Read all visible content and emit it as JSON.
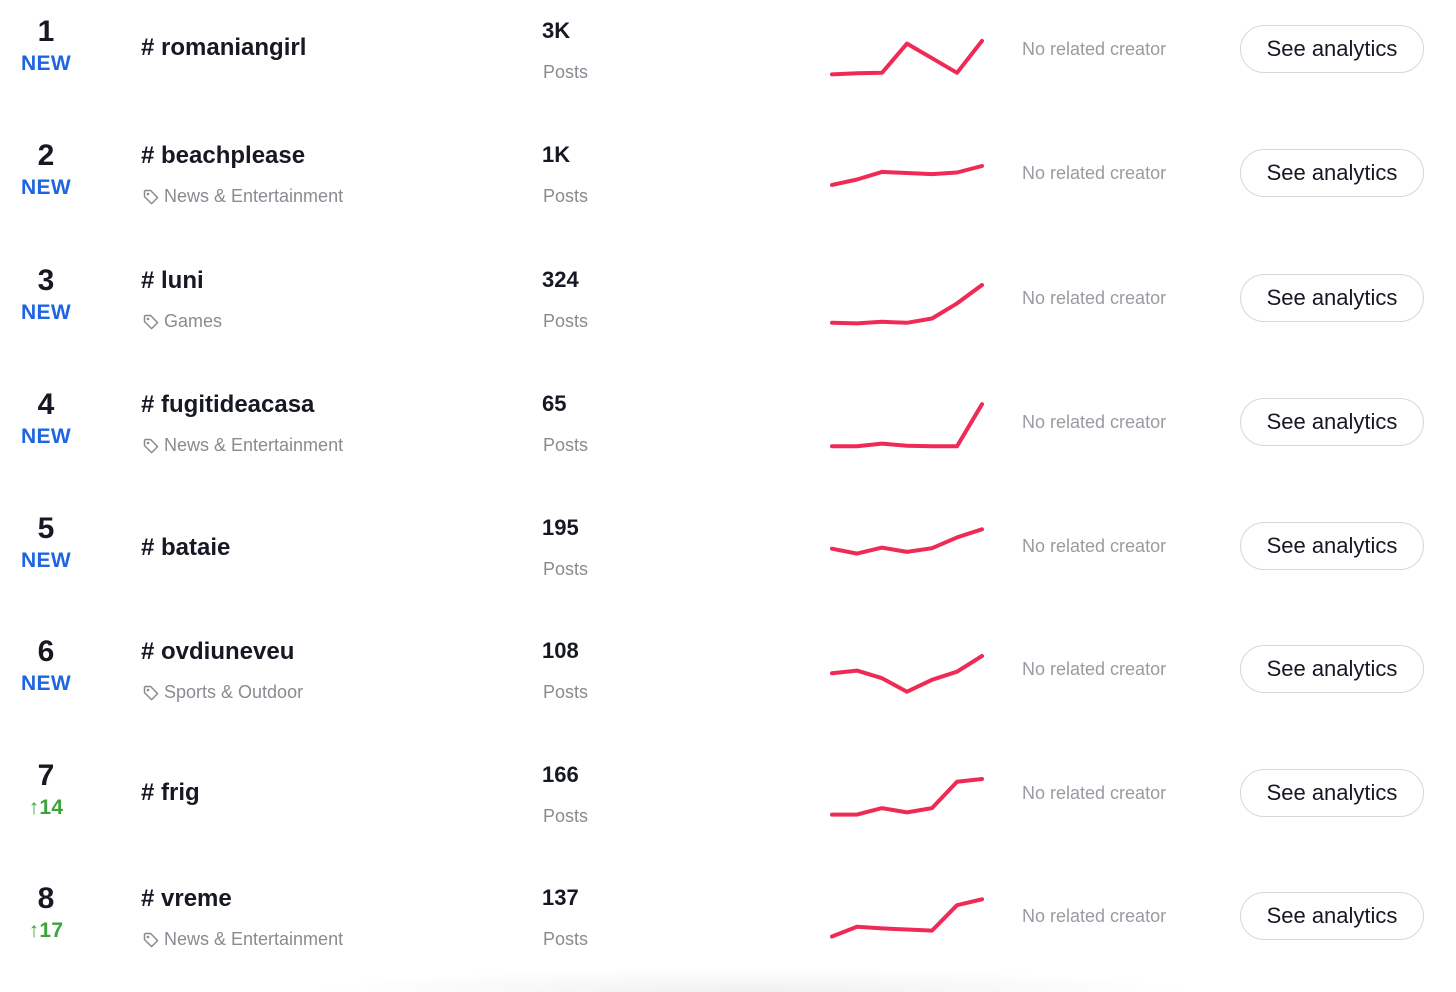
{
  "posts_label": "Posts",
  "creator_text": "No related creator",
  "button_label": "See analytics",
  "colors": {
    "trend_line": "#ee2a55",
    "badge_new": "#1f65e0",
    "badge_up": "#3ea33a"
  },
  "rows": [
    {
      "rank": "1",
      "badge": "NEW",
      "badge_type": "new",
      "hashtag": "# romaniangirl",
      "category": "",
      "posts": "3K",
      "trend": [
        0.03,
        0.05,
        0.06,
        0.6,
        0.33,
        0.06,
        0.65
      ]
    },
    {
      "rank": "2",
      "badge": "NEW",
      "badge_type": "new",
      "hashtag": "# beachplease",
      "category": "News & Entertainment",
      "posts": "1K",
      "trend": [
        0.28,
        0.38,
        0.52,
        0.5,
        0.48,
        0.51,
        0.63
      ]
    },
    {
      "rank": "3",
      "badge": "NEW",
      "badge_type": "new",
      "hashtag": "# luni",
      "category": "Games",
      "posts": "324",
      "trend": [
        0.04,
        0.03,
        0.06,
        0.04,
        0.12,
        0.4,
        0.74
      ]
    },
    {
      "rank": "4",
      "badge": "NEW",
      "badge_type": "new",
      "hashtag": "# fugitideacasa",
      "category": "News & Entertainment",
      "posts": "65",
      "trend": [
        0.05,
        0.05,
        0.1,
        0.06,
        0.05,
        0.05,
        0.83
      ]
    },
    {
      "rank": "5",
      "badge": "NEW",
      "badge_type": "new",
      "hashtag": "# bataie",
      "category": "",
      "posts": "195",
      "trend": [
        0.45,
        0.36,
        0.47,
        0.39,
        0.46,
        0.66,
        0.81
      ]
    },
    {
      "rank": "6",
      "badge": "NEW",
      "badge_type": "new",
      "hashtag": "# ovdiuneveu",
      "category": "Sports & Outdoor",
      "posts": "108",
      "trend": [
        0.42,
        0.47,
        0.33,
        0.08,
        0.3,
        0.45,
        0.74
      ]
    },
    {
      "rank": "7",
      "badge": "↑14",
      "badge_type": "up",
      "hashtag": "# frig",
      "category": "",
      "posts": "166",
      "trend": [
        0.1,
        0.1,
        0.22,
        0.14,
        0.22,
        0.71,
        0.76
      ]
    },
    {
      "rank": "8",
      "badge": "↑17",
      "badge_type": "up",
      "hashtag": "# vreme",
      "category": "News & Entertainment",
      "posts": "137",
      "trend": [
        0.12,
        0.3,
        0.27,
        0.25,
        0.23,
        0.7,
        0.81
      ]
    }
  ]
}
